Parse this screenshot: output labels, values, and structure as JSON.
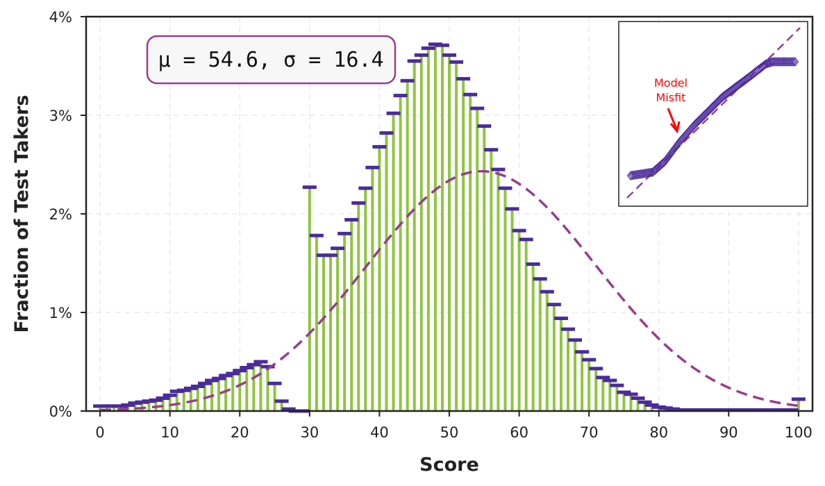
{
  "chart_data": {
    "type": "bar",
    "xlabel": "Score",
    "ylabel": "Fraction of Test Takers",
    "xlim": [
      -2,
      102
    ],
    "ylim": [
      0,
      0.04
    ],
    "xticks": [
      "0",
      "10",
      "20",
      "30",
      "40",
      "50",
      "60",
      "70",
      "80",
      "90",
      "100"
    ],
    "yticks": [
      "0%",
      "1%",
      "2%",
      "3%",
      "4%"
    ],
    "grid": true,
    "colors": {
      "bar": "#8dc63f",
      "marker": "#4b2a9c",
      "fit": "#9b3a8f",
      "note": "#ff0000"
    },
    "x": [
      0,
      1,
      2,
      3,
      4,
      5,
      6,
      7,
      8,
      9,
      10,
      11,
      12,
      13,
      14,
      15,
      16,
      17,
      18,
      19,
      20,
      21,
      22,
      23,
      24,
      25,
      26,
      27,
      28,
      29,
      30,
      31,
      32,
      33,
      34,
      35,
      36,
      37,
      38,
      39,
      40,
      41,
      42,
      43,
      44,
      45,
      46,
      47,
      48,
      49,
      50,
      51,
      52,
      53,
      54,
      55,
      56,
      57,
      58,
      59,
      60,
      61,
      62,
      63,
      64,
      65,
      66,
      67,
      68,
      69,
      70,
      71,
      72,
      73,
      74,
      75,
      76,
      77,
      78,
      79,
      80,
      81,
      82,
      83,
      84,
      85,
      86,
      87,
      88,
      89,
      90,
      91,
      92,
      93,
      94,
      95,
      96,
      97,
      98,
      99,
      100
    ],
    "values": [
      0.0005,
      0.0005,
      0.0005,
      0.0005,
      0.0006,
      0.0008,
      0.0009,
      0.001,
      0.0011,
      0.0013,
      0.0016,
      0.002,
      0.0021,
      0.0023,
      0.0025,
      0.0028,
      0.0031,
      0.0033,
      0.0036,
      0.0038,
      0.0041,
      0.0044,
      0.0047,
      0.005,
      0.0045,
      0.0028,
      0.001,
      0.0002,
      0,
      0,
      0.0227,
      0.0178,
      0.0158,
      0.0158,
      0.0165,
      0.018,
      0.0194,
      0.0211,
      0.0226,
      0.0247,
      0.0268,
      0.0282,
      0.0302,
      0.032,
      0.0335,
      0.0355,
      0.0361,
      0.0368,
      0.0372,
      0.0371,
      0.0361,
      0.0354,
      0.0337,
      0.0321,
      0.0307,
      0.0289,
      0.0265,
      0.0245,
      0.0226,
      0.0205,
      0.0183,
      0.0174,
      0.0149,
      0.0134,
      0.0121,
      0.0108,
      0.0094,
      0.0083,
      0.0072,
      0.006,
      0.0052,
      0.0043,
      0.0034,
      0.0031,
      0.0026,
      0.0019,
      0.0017,
      0.0013,
      0.0009,
      0.0006,
      0.0004,
      0.0003,
      0.0002,
      0.0001,
      0.0001,
      0.0001,
      0.0001,
      0.0001,
      0.0001,
      0.0001,
      0.0001,
      0.0001,
      0.0001,
      0.0001,
      0.0001,
      0.0001,
      0.0001,
      0.0001,
      0.0001,
      0.0001,
      0.0012
    ],
    "fit": {
      "type": "normal",
      "mean": 54.6,
      "sd": 16.4
    },
    "stats_label": "μ = 54.6,  σ = 16.4",
    "inset": {
      "type": "scatter",
      "description": "quantile-quantile plot with reference line",
      "annotation": [
        "Model",
        "Misfit"
      ]
    }
  }
}
